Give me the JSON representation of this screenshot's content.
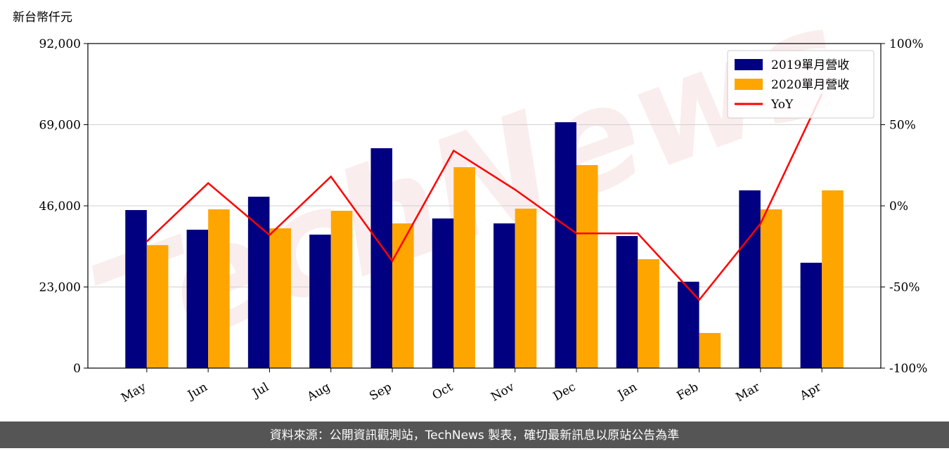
{
  "chart_data": {
    "type": "bar_line",
    "unit_label": "新台幣仟元",
    "watermark": "TechNews",
    "categories": [
      "May",
      "Jun",
      "Jul",
      "Aug",
      "Sep",
      "Oct",
      "Nov",
      "Dec",
      "Jan",
      "Feb",
      "Mar",
      "Apr"
    ],
    "series": [
      {
        "name": "2019單月營收",
        "color": "#000080",
        "type": "bar",
        "values": [
          44800,
          39230,
          48590,
          37840,
          62330,
          42420,
          41020,
          69700,
          37440,
          24490,
          50380,
          29870
        ]
      },
      {
        "name": "2020單月營收",
        "color": "#ffa500",
        "type": "bar",
        "values": [
          34850,
          45000,
          39630,
          44600,
          41020,
          56950,
          45200,
          57550,
          30870,
          9960,
          45000,
          50380
        ]
      },
      {
        "name": "YoY",
        "color": "#ff0000",
        "type": "line",
        "axis": "y2",
        "values": [
          -22,
          14,
          -18,
          18,
          -34,
          34,
          10,
          -17,
          -17,
          -58,
          -11,
          69
        ]
      }
    ],
    "ylim": [
      0,
      92000
    ],
    "yticks": [
      0,
      {
        "value": 23000,
        "label": "23,000"
      },
      {
        "value": 46000,
        "label": "46,000"
      },
      {
        "value": 69000,
        "label": "69,000"
      },
      {
        "value": 92000,
        "label": "92,000"
      }
    ],
    "y2lim": [
      -100,
      100
    ],
    "y2ticks": [
      {
        "value": -100,
        "label": "-100%"
      },
      {
        "value": -50,
        "label": "-50%"
      },
      {
        "value": 0,
        "label": "0%"
      },
      {
        "value": 50,
        "label": "50%"
      },
      {
        "value": 100,
        "label": "100%"
      }
    ],
    "grid": true,
    "legend": "upper right"
  },
  "footer": "資料來源：公開資訊觀測站，TechNews 製表，確切最新訊息以原站公告為準"
}
